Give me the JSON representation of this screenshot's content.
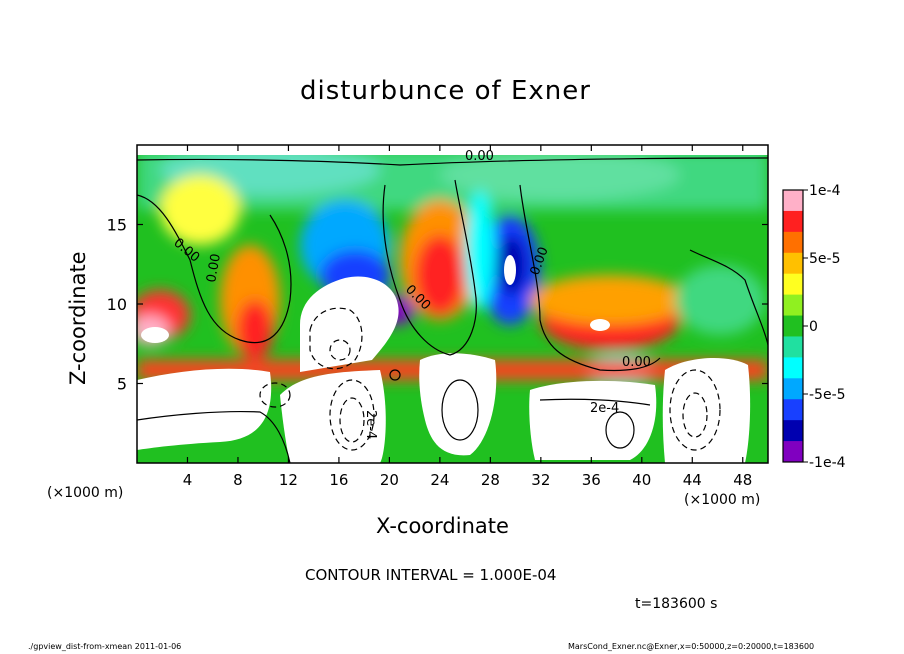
{
  "chart_data": {
    "type": "heatmap",
    "title": "disturbunce of Exner",
    "xlabel": "X-coordinate",
    "ylabel": "Z-coordinate",
    "x_unit": "(×1000 m)",
    "y_unit": "(×1000 m)",
    "xlim": [
      0,
      50
    ],
    "ylim": [
      0,
      20
    ],
    "x_ticks": [
      4,
      8,
      12,
      16,
      20,
      24,
      28,
      32,
      36,
      40,
      44,
      48
    ],
    "y_ticks": [
      5,
      10,
      15
    ],
    "colorbar": {
      "range": [
        -0.0001,
        0.0001
      ],
      "ticks": [
        "1e-4",
        "5e-5",
        "0",
        "-5e-5",
        "-1e-4"
      ],
      "colors": [
        "#ffb0c8",
        "#ff2020",
        "#ff7000",
        "#ffc000",
        "#ffff20",
        "#90f020",
        "#20c020",
        "#20e0a0",
        "#00ffff",
        "#00a8ff",
        "#1840ff",
        "#0000b0",
        "#8000c0"
      ]
    },
    "contour_labels": [
      "0.00",
      "0.00",
      "0.00",
      "0.00",
      "0.00",
      "0.00",
      "2e-4",
      "2e-4"
    ],
    "grid": false
  },
  "annotations": {
    "contour_interval": "CONTOUR INTERVAL = 1.000E-04",
    "time": "t=183600 s"
  },
  "footer": {
    "left": "./gpview_dist-from-xmean  2011-01-06",
    "right": "MarsCond_Exner.nc@Exner,x=0:50000,z=0:20000,t=183600"
  }
}
